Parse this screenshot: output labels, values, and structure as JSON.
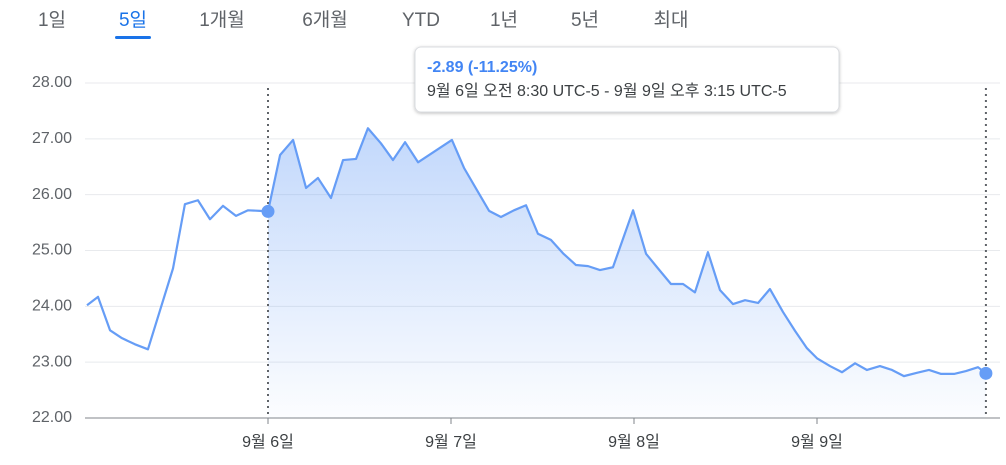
{
  "tabs": {
    "items": [
      "1일",
      "5일",
      "1개월",
      "6개월",
      "YTD",
      "1년",
      "5년",
      "최대"
    ],
    "selected": 1
  },
  "chart_data": {
    "type": "line",
    "color": "#669df6",
    "x": [
      5.011,
      5.071,
      5.137,
      5.202,
      5.273,
      5.344,
      5.481,
      5.546,
      5.617,
      5.683,
      5.754,
      5.825,
      5.891,
      5.956,
      6.0,
      6.066,
      6.137,
      6.208,
      6.273,
      6.344,
      6.41,
      6.481,
      6.546,
      6.617,
      6.683,
      6.749,
      6.82,
      7.005,
      7.071,
      7.142,
      7.208,
      7.273,
      7.344,
      7.41,
      7.475,
      7.546,
      7.612,
      7.683,
      7.749,
      7.814,
      7.885,
      7.995,
      8.066,
      8.131,
      8.202,
      8.268,
      8.333,
      8.404,
      8.47,
      8.541,
      8.607,
      8.678,
      8.743,
      8.814,
      8.88,
      8.945,
      9.0,
      9.071,
      9.137,
      9.208,
      9.273,
      9.344,
      9.41,
      9.475,
      9.546,
      9.612,
      9.678,
      9.749,
      9.814,
      9.88,
      9.923
    ],
    "values": [
      24.02,
      24.17,
      23.57,
      23.43,
      23.32,
      23.23,
      24.68,
      25.83,
      25.9,
      25.56,
      25.8,
      25.62,
      25.72,
      25.71,
      25.7,
      26.71,
      26.98,
      26.12,
      26.3,
      25.94,
      26.62,
      26.64,
      27.19,
      26.92,
      26.62,
      26.94,
      26.58,
      26.98,
      26.48,
      26.08,
      25.71,
      25.6,
      25.72,
      25.81,
      25.3,
      25.19,
      24.95,
      24.74,
      24.72,
      24.65,
      24.7,
      25.72,
      24.94,
      24.68,
      24.4,
      24.4,
      24.25,
      24.97,
      24.29,
      24.04,
      24.11,
      24.06,
      24.31,
      23.9,
      23.56,
      23.25,
      23.07,
      22.93,
      22.82,
      22.98,
      22.86,
      22.93,
      22.86,
      22.75,
      22.81,
      22.86,
      22.79,
      22.79,
      22.84,
      22.91,
      22.8
    ],
    "xlim": [
      5,
      10
    ],
    "xticks": [
      {
        "value": 6,
        "label": "9월 6일"
      },
      {
        "value": 7,
        "label": "9월 7일"
      },
      {
        "value": 8,
        "label": "9월 8일"
      },
      {
        "value": 9,
        "label": "9월 9일"
      }
    ],
    "ylim": [
      22,
      28
    ],
    "yticks": [
      {
        "value": 22,
        "label": "22.00"
      },
      {
        "value": 23,
        "label": "23.00"
      },
      {
        "value": 24,
        "label": "24.00"
      },
      {
        "value": 25,
        "label": "25.00"
      },
      {
        "value": 26,
        "label": "26.00"
      },
      {
        "value": 27,
        "label": "27.00"
      },
      {
        "value": 28,
        "label": "28.00"
      }
    ],
    "grid": true,
    "selection": [
      14,
      70
    ],
    "tooltip": {
      "change": "-2.89 (-11.25%)",
      "range": "9월 6일 오전 8:30 UTC-5 - 9월 9일 오후 3:15 UTC-5"
    }
  }
}
